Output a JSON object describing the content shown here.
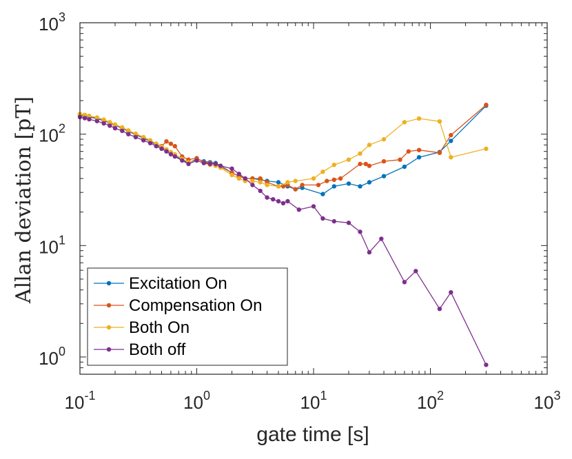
{
  "chart_data": {
    "type": "line",
    "title": "",
    "xlabel": "gate time [s]",
    "ylabel": "Allan deviation [pT]",
    "xscale": "log",
    "yscale": "log",
    "xlim": [
      0.1,
      1000
    ],
    "ylim": [
      0.7,
      1000
    ],
    "x_ticks": [
      {
        "base": "10",
        "exp": "-1"
      },
      {
        "base": "10",
        "exp": "0"
      },
      {
        "base": "10",
        "exp": "1"
      },
      {
        "base": "10",
        "exp": "2"
      },
      {
        "base": "10",
        "exp": "3"
      }
    ],
    "y_ticks": [
      {
        "base": "10",
        "exp": "0"
      },
      {
        "base": "10",
        "exp": "1"
      },
      {
        "base": "10",
        "exp": "2"
      },
      {
        "base": "10",
        "exp": "3"
      }
    ],
    "legend_position": "bottom-left",
    "series": [
      {
        "name": "Excitation On",
        "color": "#0072BD",
        "x": [
          0.1,
          0.11,
          0.12,
          0.14,
          0.16,
          0.18,
          0.2,
          0.23,
          0.26,
          0.3,
          0.35,
          0.4,
          0.45,
          0.5,
          0.55,
          0.6,
          0.65,
          0.75,
          0.85,
          1.0,
          1.15,
          1.3,
          1.45,
          1.6,
          2.0,
          2.3,
          2.6,
          3.0,
          3.5,
          4.0,
          5.0,
          6.0,
          7.0,
          8.0,
          12.0,
          15.0,
          20.0,
          25.0,
          30.0,
          40.0,
          60.0,
          80.0,
          120.0,
          150.0,
          300.0
        ],
        "values": [
          148,
          145,
          142,
          138,
          132,
          126,
          120,
          113,
          106,
          99,
          92,
          86,
          80,
          76,
          72,
          68,
          64,
          59,
          55,
          60,
          57,
          56,
          55,
          52,
          45,
          42,
          40,
          40,
          39,
          38,
          37,
          34,
          32,
          33,
          29,
          34,
          36,
          34,
          37,
          42,
          51,
          62,
          69,
          87,
          180
        ]
      },
      {
        "name": "Compensation On",
        "color": "#D95319",
        "x": [
          0.1,
          0.11,
          0.12,
          0.14,
          0.16,
          0.18,
          0.2,
          0.23,
          0.26,
          0.3,
          0.35,
          0.4,
          0.45,
          0.5,
          0.55,
          0.6,
          0.65,
          0.75,
          0.85,
          1.0,
          1.15,
          1.3,
          1.45,
          1.6,
          2.0,
          2.3,
          2.6,
          3.0,
          3.5,
          4.0,
          5.0,
          5.5,
          6.0,
          7.0,
          8.0,
          11.0,
          13.0,
          15.0,
          17.0,
          25.0,
          28.0,
          30.0,
          40.0,
          55.0,
          65.0,
          80.0,
          120.0,
          150.0,
          300.0
        ],
        "values": [
          150,
          148,
          145,
          140,
          134,
          127,
          121,
          114,
          107,
          100,
          93,
          87,
          82,
          78,
          86,
          82,
          78,
          63,
          59,
          61,
          56,
          55,
          54,
          51,
          45,
          42,
          40,
          40,
          40,
          37,
          34,
          34,
          35,
          32,
          35,
          35,
          38,
          39,
          40,
          54,
          54,
          52,
          57,
          59,
          70,
          72,
          68,
          98,
          183
        ]
      },
      {
        "name": "Both On",
        "color": "#EDB120",
        "x": [
          0.1,
          0.11,
          0.12,
          0.14,
          0.16,
          0.18,
          0.2,
          0.23,
          0.26,
          0.3,
          0.35,
          0.4,
          0.45,
          0.5,
          0.55,
          0.6,
          0.65,
          0.75,
          0.85,
          1.0,
          1.15,
          1.3,
          1.45,
          1.6,
          2.0,
          2.3,
          2.6,
          3.0,
          3.5,
          4.0,
          5.0,
          6.0,
          7.0,
          10.0,
          12.0,
          15.0,
          20.0,
          25.0,
          30.0,
          40.0,
          60.0,
          80.0,
          120.0,
          150.0,
          300.0
        ],
        "values": [
          152,
          149,
          146,
          141,
          135,
          128,
          122,
          115,
          108,
          101,
          94,
          88,
          82,
          77,
          73,
          69,
          66,
          60,
          56,
          58,
          55,
          53,
          52,
          50,
          43,
          40,
          38,
          38,
          37,
          35,
          34,
          37,
          38,
          40,
          46,
          53,
          59,
          67,
          80,
          90,
          128,
          138,
          130,
          62,
          74
        ]
      },
      {
        "name": "Both off",
        "color": "#7E2F8E",
        "x": [
          0.1,
          0.11,
          0.12,
          0.14,
          0.16,
          0.18,
          0.2,
          0.23,
          0.26,
          0.3,
          0.35,
          0.4,
          0.45,
          0.5,
          0.55,
          0.6,
          0.65,
          0.75,
          0.85,
          1.0,
          1.15,
          1.3,
          1.45,
          1.6,
          2.0,
          2.3,
          2.6,
          3.0,
          3.5,
          4.0,
          4.5,
          5.0,
          5.5,
          6.0,
          7.5,
          10.0,
          12.0,
          15.0,
          20.0,
          25.0,
          30.0,
          38.0,
          60.0,
          75.0,
          120.0,
          150.0,
          300.0
        ],
        "values": [
          142,
          139,
          136,
          131,
          125,
          119,
          113,
          107,
          100,
          94,
          88,
          83,
          78,
          74,
          70,
          66,
          63,
          58,
          54,
          58,
          55,
          54,
          54,
          52,
          49,
          44,
          40,
          35,
          31,
          27,
          26,
          25,
          24,
          25,
          21,
          22.5,
          17.5,
          16.5,
          16,
          13.3,
          8.7,
          11.5,
          4.7,
          5.9,
          2.7,
          3.8,
          0.85
        ]
      }
    ]
  }
}
